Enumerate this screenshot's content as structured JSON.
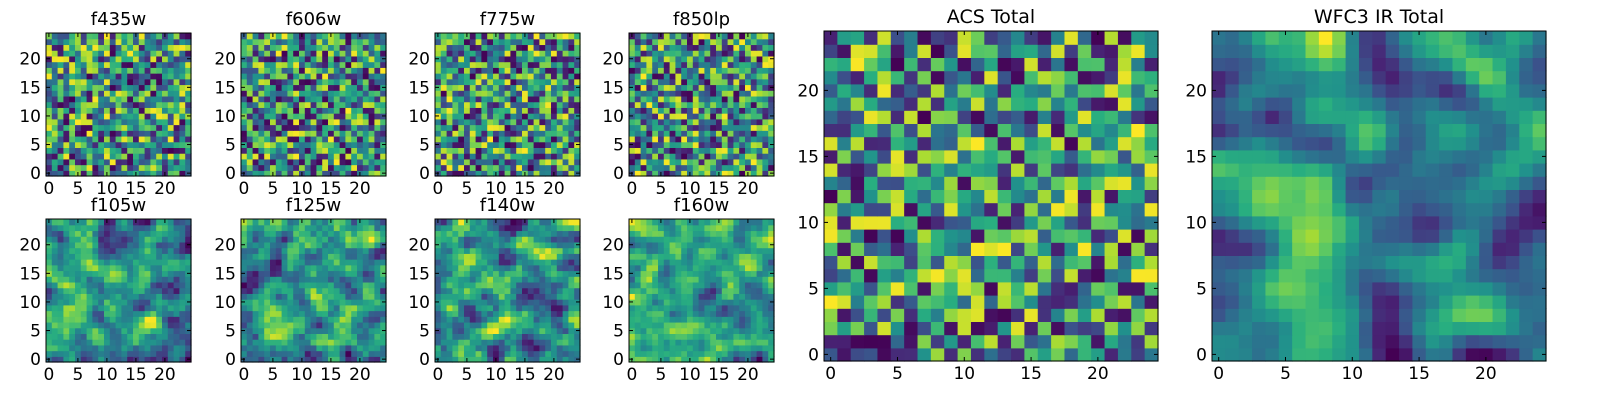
{
  "chart_data": [
    {
      "type": "heatmap",
      "title": "f435w",
      "size": 25,
      "seed": 11,
      "ticks": [
        0,
        5,
        10,
        15,
        20
      ],
      "xlim": [
        0,
        24
      ],
      "ylim": [
        0,
        24
      ],
      "colormap": "viridis",
      "smoothing": 0
    },
    {
      "type": "heatmap",
      "title": "f606w",
      "size": 25,
      "seed": 23,
      "ticks": [
        0,
        5,
        10,
        15,
        20
      ],
      "xlim": [
        0,
        24
      ],
      "ylim": [
        0,
        24
      ],
      "colormap": "viridis",
      "smoothing": 0
    },
    {
      "type": "heatmap",
      "title": "f775w",
      "size": 25,
      "seed": 37,
      "ticks": [
        0,
        5,
        10,
        15,
        20
      ],
      "xlim": [
        0,
        24
      ],
      "ylim": [
        0,
        24
      ],
      "colormap": "viridis",
      "smoothing": 0
    },
    {
      "type": "heatmap",
      "title": "f850lp",
      "size": 25,
      "seed": 41,
      "ticks": [
        0,
        5,
        10,
        15,
        20
      ],
      "xlim": [
        0,
        24
      ],
      "ylim": [
        0,
        24
      ],
      "colormap": "viridis",
      "smoothing": 0
    },
    {
      "type": "heatmap",
      "title": "f105w",
      "size": 25,
      "seed": 53,
      "ticks": [
        0,
        5,
        10,
        15,
        20
      ],
      "xlim": [
        0,
        24
      ],
      "ylim": [
        0,
        24
      ],
      "colormap": "viridis",
      "smoothing": 1
    },
    {
      "type": "heatmap",
      "title": "f125w",
      "size": 25,
      "seed": 67,
      "ticks": [
        0,
        5,
        10,
        15,
        20
      ],
      "xlim": [
        0,
        24
      ],
      "ylim": [
        0,
        24
      ],
      "colormap": "viridis",
      "smoothing": 1
    },
    {
      "type": "heatmap",
      "title": "f140w",
      "size": 25,
      "seed": 71,
      "ticks": [
        0,
        5,
        10,
        15,
        20
      ],
      "xlim": [
        0,
        24
      ],
      "ylim": [
        0,
        24
      ],
      "colormap": "viridis",
      "smoothing": 1
    },
    {
      "type": "heatmap",
      "title": "f160w",
      "size": 25,
      "seed": 83,
      "ticks": [
        0,
        5,
        10,
        15,
        20
      ],
      "xlim": [
        0,
        24
      ],
      "ylim": [
        0,
        24
      ],
      "colormap": "viridis",
      "smoothing": 1
    },
    {
      "type": "heatmap",
      "title": "ACS Total",
      "size": 25,
      "seed": 97,
      "ticks": [
        0,
        5,
        10,
        15,
        20
      ],
      "xlim": [
        0,
        24
      ],
      "ylim": [
        0,
        24
      ],
      "colormap": "viridis",
      "smoothing": 0
    },
    {
      "type": "heatmap",
      "title": "WFC3 IR Total",
      "size": 25,
      "seed": 101,
      "ticks": [
        0,
        5,
        10,
        15,
        20
      ],
      "xlim": [
        0,
        24
      ],
      "ylim": [
        0,
        24
      ],
      "colormap": "viridis",
      "smoothing": 2
    }
  ]
}
